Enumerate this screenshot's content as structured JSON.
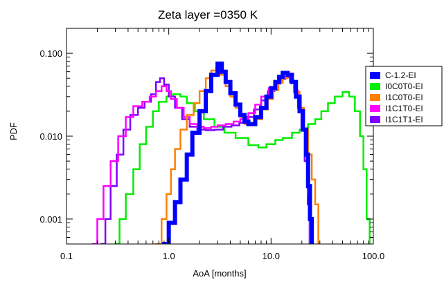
{
  "chart_data": {
    "type": "line",
    "title": "Zeta layer =0350 K",
    "xlabel": "AoA [months]",
    "ylabel": "PDF",
    "x_scale": "log",
    "y_scale": "log",
    "xlim": [
      0.1,
      100.0
    ],
    "ylim": [
      0.0005,
      0.2
    ],
    "x_ticks": [
      0.1,
      1.0,
      10.0,
      100.0
    ],
    "x_tick_labels": [
      "0.1",
      "1.0",
      "10.0",
      "100.0"
    ],
    "y_ticks": [
      0.001,
      0.01,
      0.1
    ],
    "y_tick_labels": [
      "0.001",
      "0.010",
      "0.100"
    ],
    "grid": false,
    "legend_position": "right",
    "series": [
      {
        "name": "C-1.2-EI",
        "color": "#0000ff",
        "style": "step-thick",
        "points": [
          [
            0.9,
            0.0005
          ],
          [
            1.0,
            0.0009
          ],
          [
            1.15,
            0.0016
          ],
          [
            1.3,
            0.003
          ],
          [
            1.5,
            0.006
          ],
          [
            1.7,
            0.011
          ],
          [
            2.0,
            0.02
          ],
          [
            2.3,
            0.035
          ],
          [
            2.6,
            0.055
          ],
          [
            3.0,
            0.075
          ],
          [
            3.3,
            0.06
          ],
          [
            3.6,
            0.045
          ],
          [
            4.0,
            0.033
          ],
          [
            4.5,
            0.024
          ],
          [
            5.0,
            0.018
          ],
          [
            5.5,
            0.015
          ],
          [
            6.0,
            0.014
          ],
          [
            7.0,
            0.017
          ],
          [
            8.0,
            0.022
          ],
          [
            9.0,
            0.03
          ],
          [
            10.0,
            0.038
          ],
          [
            11.0,
            0.045
          ],
          [
            12.0,
            0.052
          ],
          [
            13.0,
            0.058
          ],
          [
            14.5,
            0.055
          ],
          [
            16.0,
            0.045
          ],
          [
            17.5,
            0.03
          ],
          [
            19.0,
            0.02
          ],
          [
            20.5,
            0.012
          ],
          [
            22.0,
            0.006
          ],
          [
            23.0,
            0.0025
          ],
          [
            24.0,
            0.001
          ],
          [
            25.0,
            0.0005
          ]
        ]
      },
      {
        "name": "I0C0T0-EI",
        "color": "#00ee00",
        "style": "step",
        "points": [
          [
            0.3,
            0.0005
          ],
          [
            0.33,
            0.001
          ],
          [
            0.38,
            0.002
          ],
          [
            0.45,
            0.004
          ],
          [
            0.52,
            0.008
          ],
          [
            0.6,
            0.013
          ],
          [
            0.7,
            0.02
          ],
          [
            0.8,
            0.026
          ],
          [
            0.95,
            0.03
          ],
          [
            1.1,
            0.032
          ],
          [
            1.3,
            0.03
          ],
          [
            1.5,
            0.025
          ],
          [
            1.8,
            0.02
          ],
          [
            2.2,
            0.016
          ],
          [
            2.8,
            0.013
          ],
          [
            3.5,
            0.011
          ],
          [
            4.5,
            0.0095
          ],
          [
            6.0,
            0.0078
          ],
          [
            7.5,
            0.0073
          ],
          [
            9.0,
            0.008
          ],
          [
            11.0,
            0.009
          ],
          [
            13.0,
            0.0095
          ],
          [
            16.0,
            0.011
          ],
          [
            19.0,
            0.012
          ],
          [
            23.0,
            0.014
          ],
          [
            27.0,
            0.016
          ],
          [
            31.0,
            0.02
          ],
          [
            36.0,
            0.025
          ],
          [
            42.0,
            0.03
          ],
          [
            50.0,
            0.034
          ],
          [
            58.0,
            0.03
          ],
          [
            66.0,
            0.02
          ],
          [
            74.0,
            0.01
          ],
          [
            80.0,
            0.004
          ],
          [
            86.0,
            0.001
          ],
          [
            92.0,
            0.0005
          ]
        ]
      },
      {
        "name": "I1C0T0-EI",
        "color": "#ff8000",
        "style": "step",
        "points": [
          [
            0.75,
            0.0005
          ],
          [
            0.85,
            0.001
          ],
          [
            0.95,
            0.002
          ],
          [
            1.05,
            0.004
          ],
          [
            1.15,
            0.007
          ],
          [
            1.3,
            0.012
          ],
          [
            1.5,
            0.018
          ],
          [
            1.75,
            0.025
          ],
          [
            2.0,
            0.035
          ],
          [
            2.3,
            0.05
          ],
          [
            2.6,
            0.062
          ],
          [
            2.9,
            0.068
          ],
          [
            3.2,
            0.055
          ],
          [
            3.6,
            0.04
          ],
          [
            4.0,
            0.03
          ],
          [
            4.5,
            0.022
          ],
          [
            5.0,
            0.017
          ],
          [
            5.5,
            0.014
          ],
          [
            6.3,
            0.0135
          ],
          [
            7.2,
            0.016
          ],
          [
            8.2,
            0.021
          ],
          [
            9.3,
            0.028
          ],
          [
            10.5,
            0.036
          ],
          [
            11.8,
            0.044
          ],
          [
            13.0,
            0.05
          ],
          [
            14.5,
            0.055
          ],
          [
            16.0,
            0.046
          ],
          [
            17.5,
            0.034
          ],
          [
            19.0,
            0.022
          ],
          [
            21.0,
            0.012
          ],
          [
            23.0,
            0.006
          ],
          [
            25.0,
            0.003
          ],
          [
            27.0,
            0.0015
          ],
          [
            29.0,
            0.0005
          ]
        ]
      },
      {
        "name": "I1C1T0-EI",
        "color": "#ff00ff",
        "style": "step",
        "points": [
          [
            0.18,
            0.0005
          ],
          [
            0.2,
            0.001
          ],
          [
            0.23,
            0.0025
          ],
          [
            0.27,
            0.005
          ],
          [
            0.32,
            0.01
          ],
          [
            0.38,
            0.017
          ],
          [
            0.45,
            0.023
          ],
          [
            0.55,
            0.026
          ],
          [
            0.65,
            0.03
          ],
          [
            0.75,
            0.035
          ],
          [
            0.85,
            0.04
          ],
          [
            0.95,
            0.035
          ],
          [
            1.05,
            0.028
          ],
          [
            1.2,
            0.022
          ],
          [
            1.4,
            0.017
          ],
          [
            1.6,
            0.014
          ],
          [
            1.9,
            0.013
          ],
          [
            2.2,
            0.0125
          ],
          [
            2.6,
            0.013
          ],
          [
            3.0,
            0.0135
          ],
          [
            3.6,
            0.014
          ],
          [
            4.3,
            0.015
          ],
          [
            5.0,
            0.016
          ],
          [
            6.0,
            0.019
          ],
          [
            7.0,
            0.024
          ],
          [
            8.0,
            0.03
          ],
          [
            9.5,
            0.038
          ],
          [
            11.0,
            0.045
          ],
          [
            12.5,
            0.05
          ],
          [
            14.0,
            0.052
          ],
          [
            15.5,
            0.045
          ],
          [
            17.0,
            0.035
          ],
          [
            18.5,
            0.022
          ],
          [
            20.0,
            0.012
          ],
          [
            21.5,
            0.006
          ],
          [
            23.0,
            0.002
          ],
          [
            24.0,
            0.0005
          ]
        ]
      },
      {
        "name": "I1C1T1-EI",
        "color": "#8000ff",
        "style": "step",
        "points": [
          [
            0.22,
            0.0005
          ],
          [
            0.24,
            0.001
          ],
          [
            0.27,
            0.0025
          ],
          [
            0.31,
            0.006
          ],
          [
            0.36,
            0.012
          ],
          [
            0.42,
            0.018
          ],
          [
            0.5,
            0.022
          ],
          [
            0.58,
            0.026
          ],
          [
            0.67,
            0.032
          ],
          [
            0.75,
            0.045
          ],
          [
            0.82,
            0.05
          ],
          [
            0.9,
            0.042
          ],
          [
            1.0,
            0.03
          ],
          [
            1.15,
            0.022
          ],
          [
            1.35,
            0.016
          ],
          [
            1.6,
            0.013
          ],
          [
            1.9,
            0.012
          ],
          [
            2.3,
            0.0118
          ],
          [
            2.8,
            0.012
          ],
          [
            3.4,
            0.013
          ],
          [
            4.1,
            0.0135
          ],
          [
            4.9,
            0.0145
          ],
          [
            5.8,
            0.017
          ],
          [
            6.8,
            0.021
          ],
          [
            8.0,
            0.027
          ],
          [
            9.3,
            0.035
          ],
          [
            10.8,
            0.043
          ],
          [
            12.3,
            0.049
          ],
          [
            13.8,
            0.051
          ],
          [
            15.3,
            0.045
          ],
          [
            16.8,
            0.034
          ],
          [
            18.3,
            0.022
          ],
          [
            19.8,
            0.012
          ],
          [
            21.3,
            0.005
          ],
          [
            22.8,
            0.0015
          ],
          [
            23.8,
            0.0005
          ]
        ]
      }
    ]
  }
}
